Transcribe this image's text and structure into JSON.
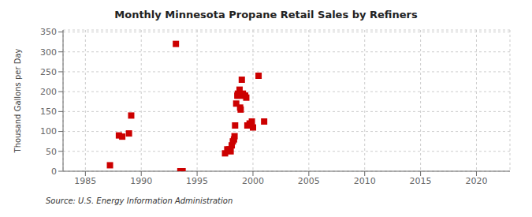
{
  "chart_data": {
    "type": "scatter",
    "title": "Monthly Minnesota Propane Retail Sales by Refiners",
    "ylabel": "Thousand Gallons per Day",
    "source": "Source: U.S. Energy Information Administration",
    "color": "#cc0000",
    "marker": "square",
    "grid": true,
    "xlim": [
      1983,
      2023
    ],
    "ylim": [
      0,
      355
    ],
    "xticks": [
      1985,
      1990,
      1995,
      2000,
      2005,
      2010,
      2015,
      2020
    ],
    "yticks": [
      0,
      50,
      100,
      150,
      200,
      250,
      300,
      350
    ],
    "x": [
      1987.2,
      1988.0,
      1988.3,
      1988.9,
      1989.1,
      1993.1,
      1993.5,
      1993.7,
      1997.5,
      1997.7,
      1997.9,
      1998.0,
      1998.1,
      1998.2,
      1998.3,
      1998.35,
      1998.4,
      1998.5,
      1998.6,
      1998.65,
      1998.7,
      1998.8,
      1998.85,
      1998.9,
      1999.0,
      1999.1,
      1999.2,
      1999.3,
      1999.4,
      1999.5,
      1999.7,
      1999.9,
      2000.0,
      2000.5,
      2001.0
    ],
    "values": [
      15,
      90,
      87,
      95,
      140,
      320,
      0,
      0,
      45,
      55,
      55,
      50,
      65,
      75,
      80,
      88,
      115,
      170,
      190,
      195,
      190,
      205,
      160,
      155,
      230,
      195,
      190,
      190,
      185,
      115,
      120,
      125,
      110,
      240,
      125
    ]
  }
}
